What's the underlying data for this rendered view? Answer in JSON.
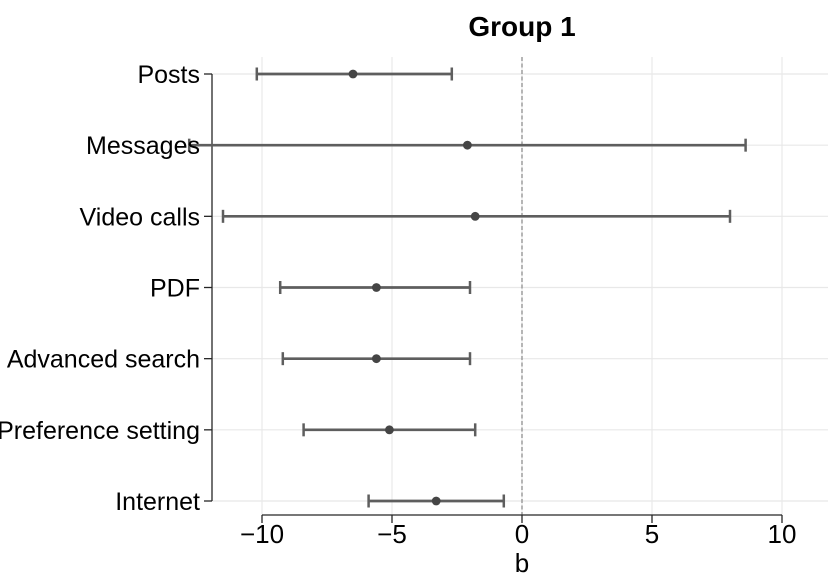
{
  "chart_data": {
    "type": "scatter",
    "subtype": "coefficient-forest-plot",
    "title": "Group 1",
    "xlabel": "b",
    "ylabel": "",
    "orientation": "horizontal-errorbars",
    "legend": "none",
    "categories": [
      "Posts",
      "Messages",
      "Video calls",
      "PDF",
      "Advanced search",
      "Preference setting",
      "Internet"
    ],
    "series": [
      {
        "name": "point estimate with confidence interval",
        "points": [
          {
            "category": "Posts",
            "estimate": -6.5,
            "ci_low": -10.2,
            "ci_high": -2.7
          },
          {
            "category": "Messages",
            "estimate": -2.1,
            "ci_low": -12.8,
            "ci_high": 8.6
          },
          {
            "category": "Video calls",
            "estimate": -1.8,
            "ci_low": -11.5,
            "ci_high": 8.0
          },
          {
            "category": "PDF",
            "estimate": -5.6,
            "ci_low": -9.3,
            "ci_high": -2.0
          },
          {
            "category": "Advanced search",
            "estimate": -5.6,
            "ci_low": -9.2,
            "ci_high": -2.0
          },
          {
            "category": "Preference setting",
            "estimate": -5.1,
            "ci_low": -8.4,
            "ci_high": -1.8
          },
          {
            "category": "Internet",
            "estimate": -3.3,
            "ci_low": -5.9,
            "ci_high": -0.7
          }
        ]
      }
    ],
    "x_axis": {
      "ticks": [
        -10,
        -5,
        0,
        5,
        10
      ],
      "tick_labels": [
        "−10",
        "−5",
        "0",
        "5",
        "10"
      ],
      "range": [
        -11.9,
        11.8
      ]
    },
    "reference_line": {
      "x": 0,
      "style": "dashed"
    },
    "grid": {
      "vertical": true,
      "horizontal": true
    },
    "colors": {
      "ci_line": "#5e5e5e",
      "estimate_dot": "#454545",
      "grid": "#e8e8e8",
      "reference_line": "#909090",
      "axis": "#262626",
      "text": "#000000",
      "background": "#ffffff"
    }
  }
}
